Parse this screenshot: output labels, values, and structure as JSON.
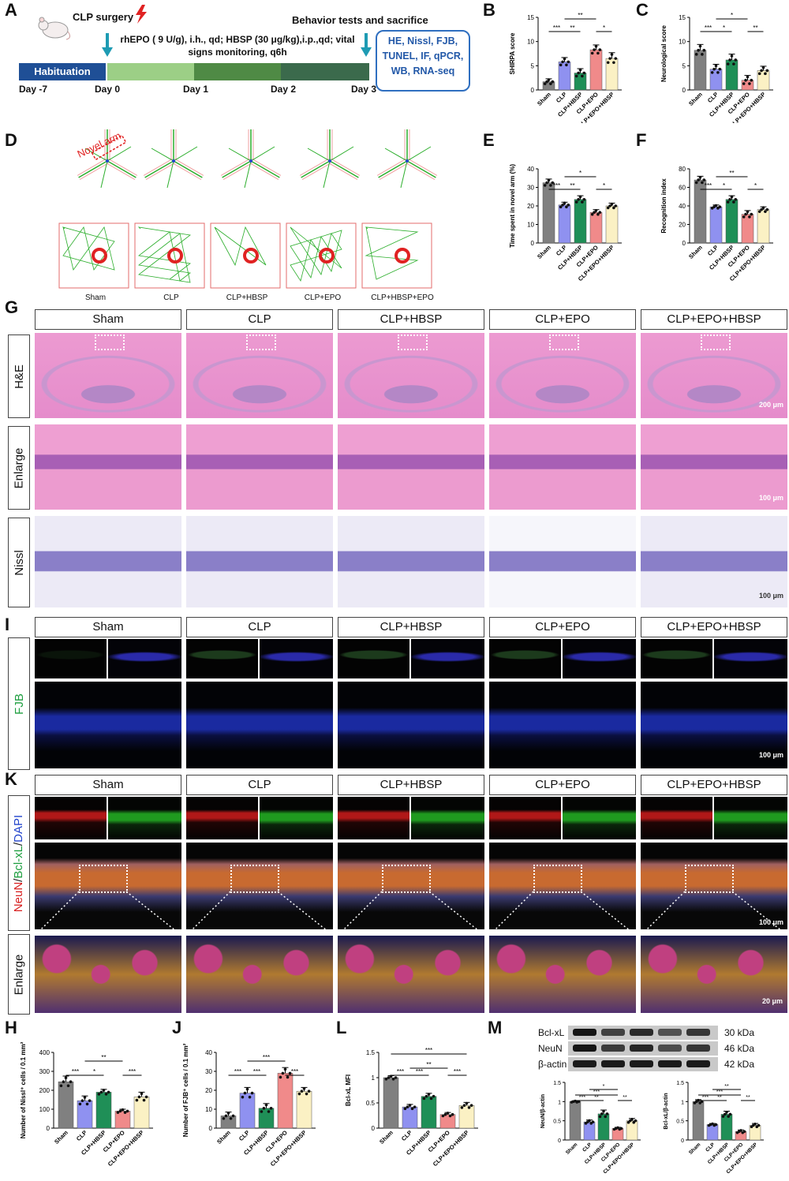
{
  "panel_letters": {
    "A": "A",
    "B": "B",
    "C": "C",
    "D": "D",
    "E": "E",
    "F": "F",
    "G": "G",
    "I": "I",
    "K": "K",
    "H": "H",
    "J": "J",
    "L": "L",
    "M": "M"
  },
  "panelA": {
    "surgery": "CLP surgery",
    "treatment": "rhEPO ( 9 U/g), i.h., qd; HBSP (30 μg/kg),i.p.,qd; vital signs monitoring, q6h",
    "behavior": "Behavior tests and sacrifice",
    "habituation": "Habituation",
    "days": [
      "Day -7",
      "Day 0",
      "Day 1",
      "Day 2",
      "Day 3"
    ],
    "assays": [
      "HE, Nissl, FJB,",
      "TUNEL, IF, qPCR,",
      "WB, RNA-seq"
    ]
  },
  "groups": [
    "Sham",
    "CLP",
    "CLP+HBSP",
    "CLP+EPO",
    "CLP+EPO+HBSP"
  ],
  "groups_D": [
    "Sham",
    "CLP",
    "CLP+HBSP",
    "CLP+EPO",
    "CLP+HBSP+EPO"
  ],
  "novel_arm": "Novel arm",
  "rows_G": [
    "H&E",
    "Enlarge",
    "Nissl"
  ],
  "row_I": "FJB",
  "row_K_stain": [
    "NeuN",
    "/",
    "Bcl-xL",
    "/",
    "DAPI"
  ],
  "row_K_enlarge": "Enlarge",
  "scales": {
    "g1": "200 μm",
    "g2": "100 μm",
    "g3": "100 μm",
    "i": "100 μm",
    "k1": "100 μm",
    "k2": "20 μm"
  },
  "wb": {
    "bands": [
      "Bcl-xL",
      "NeuN",
      "β-actin"
    ],
    "kda": [
      "30 kDa",
      "46 kDa",
      "42 kDa"
    ]
  },
  "colors": {
    "Sham": "#808080",
    "CLP": "#8f91f0",
    "CLP+HBSP": "#1f8f57",
    "CLP+EPO": "#f08a8a",
    "CLP+EPO+HBSP": "#fbf1c4"
  },
  "chart_data": [
    {
      "id": "B",
      "type": "bar",
      "categories": [
        "Sham",
        "CLP",
        "CLP+HBSP",
        "CLP+EPO",
        "CLP+EPO+HBSP"
      ],
      "values": [
        1.7,
        5.8,
        3.5,
        8.3,
        6.5
      ],
      "errors": [
        0.6,
        0.9,
        0.9,
        1.0,
        1.2
      ],
      "ylabel": "SHIRPA score",
      "ylim": [
        0,
        15
      ],
      "yticks": [
        0,
        5,
        10,
        15
      ],
      "sig": [
        {
          "a": 0,
          "b": 1,
          "t": "***"
        },
        {
          "a": 1,
          "b": 2,
          "t": "**"
        },
        {
          "a": 1,
          "b": 3,
          "t": "**"
        },
        {
          "a": 3,
          "b": 4,
          "t": "*"
        }
      ]
    },
    {
      "id": "C",
      "type": "bar",
      "categories": [
        "Sham",
        "CLP",
        "CLP+HBSP",
        "CLP+EPO",
        "CLP+EPO+HBSP"
      ],
      "values": [
        8.2,
        4.3,
        6.2,
        2.0,
        4.0
      ],
      "errors": [
        1.2,
        1.0,
        1.2,
        1.0,
        0.9
      ],
      "ylabel": "Neurological score",
      "ylim": [
        0,
        15
      ],
      "yticks": [
        0,
        5,
        10,
        15
      ],
      "sig": [
        {
          "a": 0,
          "b": 1,
          "t": "***"
        },
        {
          "a": 1,
          "b": 2,
          "t": "*"
        },
        {
          "a": 1,
          "b": 3,
          "t": "*"
        },
        {
          "a": 3,
          "b": 4,
          "t": "**"
        }
      ]
    },
    {
      "id": "E",
      "type": "bar",
      "categories": [
        "Sham",
        "CLP",
        "CLP+HBSP",
        "CLP+EPO",
        "CLP+EPO+HBSP"
      ],
      "values": [
        32.5,
        20.5,
        23.5,
        16.5,
        20.0
      ],
      "errors": [
        2.0,
        1.5,
        2.0,
        1.5,
        1.5
      ],
      "ylabel": "Time spent in novel arm (%)",
      "ylim": [
        0,
        40
      ],
      "yticks": [
        0,
        10,
        20,
        30,
        40
      ],
      "sig": [
        {
          "a": 0,
          "b": 1,
          "t": "***"
        },
        {
          "a": 1,
          "b": 2,
          "t": "**"
        },
        {
          "a": 1,
          "b": 3,
          "t": "*"
        },
        {
          "a": 3,
          "b": 4,
          "t": "*"
        }
      ]
    },
    {
      "id": "F",
      "type": "bar",
      "categories": [
        "Sham",
        "CLP",
        "CLP+HBSP",
        "CLP+EPO",
        "CLP+EPO+HBSP"
      ],
      "values": [
        68,
        39,
        47,
        31,
        36
      ],
      "errors": [
        4,
        2,
        4,
        4,
        3
      ],
      "ylabel": "Recognition index",
      "ylim": [
        0,
        80
      ],
      "yticks": [
        0,
        20,
        40,
        60,
        80
      ],
      "sig": [
        {
          "a": 0,
          "b": 1,
          "t": "***"
        },
        {
          "a": 1,
          "b": 2,
          "t": "*"
        },
        {
          "a": 1,
          "b": 3,
          "t": "**"
        },
        {
          "a": 3,
          "b": 4,
          "t": "*"
        }
      ]
    },
    {
      "id": "H",
      "type": "bar",
      "categories": [
        "Sham",
        "CLP",
        "CLP+HBSP",
        "CLP+EPO",
        "CLP+EPO+HBSP"
      ],
      "values": [
        245,
        145,
        190,
        90,
        165
      ],
      "errors": [
        30,
        25,
        15,
        10,
        25
      ],
      "ylabel": "Number of Nissl⁺ cells / 0.1 mm²",
      "ylim": [
        0,
        400
      ],
      "yticks": [
        0,
        100,
        200,
        300,
        400
      ],
      "sig": [
        {
          "a": 0,
          "b": 1,
          "t": "***"
        },
        {
          "a": 1,
          "b": 2,
          "t": "*"
        },
        {
          "a": 1,
          "b": 3,
          "t": "**"
        },
        {
          "a": 3,
          "b": 4,
          "t": "***"
        }
      ]
    },
    {
      "id": "J",
      "type": "bar",
      "categories": [
        "Sham",
        "CLP",
        "CLP+HBSP",
        "CLP+EPO",
        "CLP+EPO+HBSP"
      ],
      "values": [
        6.5,
        18.5,
        10.5,
        29,
        19.5
      ],
      "errors": [
        2,
        3,
        2.5,
        3,
        2
      ],
      "ylabel": "Number of FJB⁺ cells / 0.1 mm²",
      "ylim": [
        0,
        40
      ],
      "yticks": [
        0,
        10,
        20,
        30,
        40
      ],
      "sig": [
        {
          "a": 0,
          "b": 1,
          "t": "***"
        },
        {
          "a": 1,
          "b": 2,
          "t": "***"
        },
        {
          "a": 1,
          "b": 3,
          "t": "***"
        },
        {
          "a": 3,
          "b": 4,
          "t": "***"
        }
      ]
    },
    {
      "id": "L",
      "type": "bar",
      "categories": [
        "Sham",
        "CLP",
        "CLP+HBSP",
        "CLP+EPO",
        "CLP+EPO+HBSP"
      ],
      "values": [
        1.0,
        0.42,
        0.63,
        0.27,
        0.45
      ],
      "errors": [
        0.04,
        0.05,
        0.06,
        0.04,
        0.06
      ],
      "ylabel": "Bcl-xL MFI",
      "ylim": [
        0,
        1.5
      ],
      "yticks": [
        0,
        0.5,
        1.0,
        1.5
      ],
      "sig": [
        {
          "a": 0,
          "b": 1,
          "t": "***"
        },
        {
          "a": 1,
          "b": 2,
          "t": "***"
        },
        {
          "a": 1,
          "b": 3,
          "t": "**"
        },
        {
          "a": 3,
          "b": 4,
          "t": "***"
        },
        {
          "a": 0,
          "b": 4,
          "t": "***"
        }
      ]
    },
    {
      "id": "M1",
      "type": "bar",
      "categories": [
        "Sham",
        "CLP",
        "CLP+HBSP",
        "CLP+EPO",
        "CLP+EPO+HBSP"
      ],
      "values": [
        1.0,
        0.47,
        0.68,
        0.3,
        0.5
      ],
      "errors": [
        0.02,
        0.05,
        0.1,
        0.03,
        0.06
      ],
      "ylabel": "NeuN/β-actin",
      "ylim": [
        0,
        1.5
      ],
      "yticks": [
        0.0,
        0.5,
        1.0,
        1.5
      ],
      "sig": [
        {
          "a": 0,
          "b": 1,
          "t": "***"
        },
        {
          "a": 1,
          "b": 2,
          "t": "**"
        },
        {
          "a": 1,
          "b": 3,
          "t": "*"
        },
        {
          "a": 3,
          "b": 4,
          "t": "**"
        },
        {
          "a": 0,
          "b": 3,
          "t": "***"
        }
      ]
    },
    {
      "id": "M2",
      "type": "bar",
      "categories": [
        "Sham",
        "CLP",
        "CLP+HBSP",
        "CLP+EPO",
        "CLP+EPO+HBSP"
      ],
      "values": [
        1.0,
        0.4,
        0.67,
        0.22,
        0.38
      ],
      "errors": [
        0.05,
        0.03,
        0.08,
        0.04,
        0.05
      ],
      "ylabel": "Bcl-xL/β-actin",
      "ylim": [
        0,
        1.5
      ],
      "yticks": [
        0.0,
        0.5,
        1.0,
        1.5
      ],
      "sig": [
        {
          "a": 0,
          "b": 1,
          "t": "***"
        },
        {
          "a": 1,
          "b": 2,
          "t": "**"
        },
        {
          "a": 1,
          "b": 3,
          "t": "**"
        },
        {
          "a": 3,
          "b": 4,
          "t": "**"
        },
        {
          "a": 0,
          "b": 3,
          "t": "***"
        }
      ]
    }
  ]
}
